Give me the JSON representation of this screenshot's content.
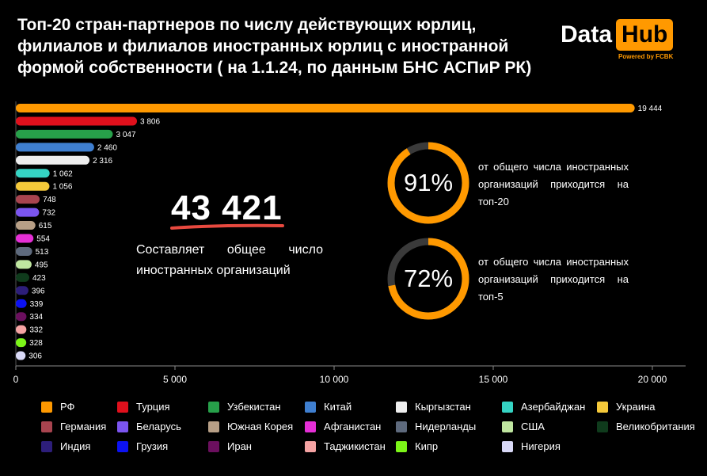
{
  "title": {
    "lines": [
      "Топ-20 стран-партнеров по числу действующих юрлиц,",
      "филиалов и филиалов иностранных юрлиц с иностранной",
      "формой собственности ( на 1.1.24, по данным БНС АСПиР РК)"
    ]
  },
  "logo": {
    "data": "Data",
    "hub": "Hub",
    "powered": "Powered by FCBK"
  },
  "summary": {
    "total": "43 421",
    "caption": "Составляет общее число иностранных организаций"
  },
  "rings": [
    {
      "percent": 91,
      "label": "91%",
      "text": "от общего числа иностранных организаций приходится на топ-20"
    },
    {
      "percent": 72,
      "label": "72%",
      "text": "от общего числа иностранных организаций приходится на топ-5"
    }
  ],
  "colors": {
    "accent": "#ff9900",
    "ring_track": "#3a3a3a",
    "underline": "#e8493f",
    "axis": "#8a8a8a"
  },
  "chart_data": {
    "type": "bar",
    "orientation": "horizontal",
    "categories": [
      "РФ",
      "Турция",
      "Узбекистан",
      "Китай",
      "Кыргызстан",
      "Азербайджан",
      "Украина",
      "Германия",
      "Беларусь",
      "Южная Корея",
      "Афганистан",
      "Нидерланды",
      "США",
      "Великобритания",
      "Индия",
      "Грузия",
      "Иран",
      "Таджикистан",
      "Кипр",
      "Нигерия"
    ],
    "values": [
      19444,
      3806,
      3047,
      2460,
      2316,
      1062,
      1056,
      748,
      732,
      615,
      554,
      513,
      495,
      423,
      396,
      339,
      334,
      332,
      328,
      306
    ],
    "value_labels": [
      "19 444",
      "3 806",
      "3 047",
      "2 460",
      "2 316",
      "1 062",
      "1 056",
      "748",
      "732",
      "615",
      "554",
      "513",
      "495",
      "423",
      "396",
      "339",
      "334",
      "332",
      "328",
      "306"
    ],
    "colors": [
      "#ff9900",
      "#e0101c",
      "#27a04a",
      "#3f7fd0",
      "#eeeeee",
      "#35d4c4",
      "#f5c93a",
      "#a8444f",
      "#7b55f0",
      "#b79f86",
      "#e52fd6",
      "#5e6a7d",
      "#bfe6a0",
      "#0f3b1c",
      "#2d1e7a",
      "#0c12f2",
      "#6b0f5e",
      "#f5a3a3",
      "#7cf518",
      "#d9d9f7"
    ],
    "xlim": [
      0,
      21000
    ],
    "xticks": [
      0,
      5000,
      10000,
      15000,
      20000
    ],
    "xtick_labels": [
      "0",
      "5 000",
      "10 000",
      "15 000",
      "20 000"
    ],
    "legend_position": "bottom"
  }
}
